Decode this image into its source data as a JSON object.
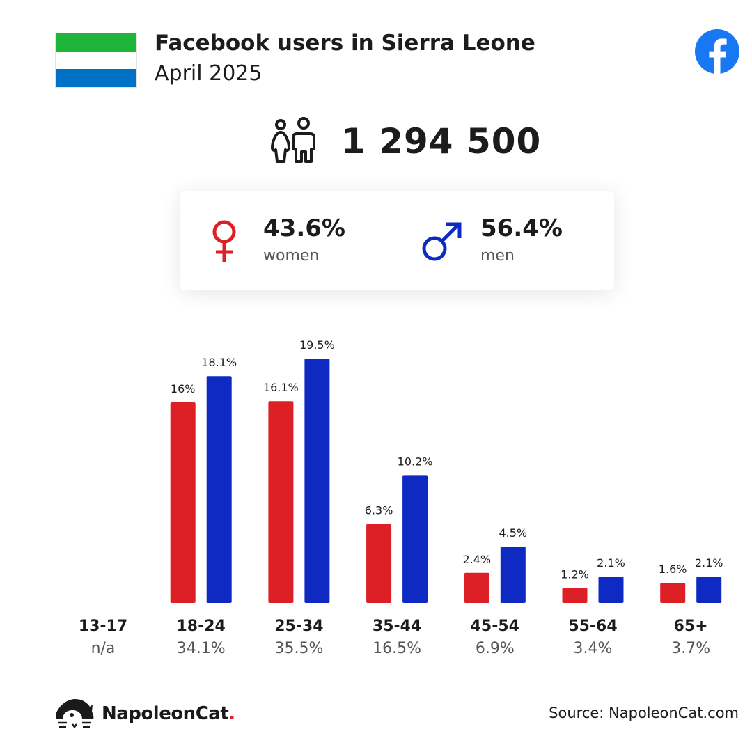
{
  "header": {
    "title": "Facebook users in Sierra Leone",
    "subtitle": "April 2025",
    "flag_colors": [
      "#1eb53a",
      "#ffffff",
      "#0072c6"
    ],
    "logo_icon": "facebook-icon"
  },
  "total": {
    "icon": "people-icon",
    "value": "1 294 500"
  },
  "gender": {
    "women": {
      "icon": "female-symbol-icon",
      "percent": "43.6%",
      "label": "women",
      "color": "#dd1f26"
    },
    "men": {
      "icon": "male-symbol-icon",
      "percent": "56.4%",
      "label": "men",
      "color": "#0f2ac2"
    }
  },
  "chart_data": {
    "type": "bar",
    "categories": [
      "13-17",
      "18-24",
      "25-34",
      "35-44",
      "45-54",
      "55-64",
      "65+"
    ],
    "category_totals": [
      "n/a",
      "34.1%",
      "35.5%",
      "16.5%",
      "6.9%",
      "3.4%",
      "3.7%"
    ],
    "series": [
      {
        "name": "women",
        "color": "#dd1f26",
        "values": [
          null,
          16,
          16.1,
          6.3,
          2.4,
          1.2,
          1.6
        ],
        "labels": [
          "",
          "16%",
          "16.1%",
          "6.3%",
          "2.4%",
          "1.2%",
          "1.6%"
        ]
      },
      {
        "name": "men",
        "color": "#0f2ac2",
        "values": [
          null,
          18.1,
          19.5,
          10.2,
          4.5,
          2.1,
          2.1
        ],
        "labels": [
          "",
          "18.1%",
          "19.5%",
          "10.2%",
          "4.5%",
          "2.1%",
          "2.1%"
        ]
      }
    ],
    "ylim": [
      0,
      20
    ],
    "grid": false
  },
  "footer": {
    "brand_name": "NapoleonCat",
    "brand_dot": ".",
    "source": "Source: NapoleonCat.com"
  }
}
